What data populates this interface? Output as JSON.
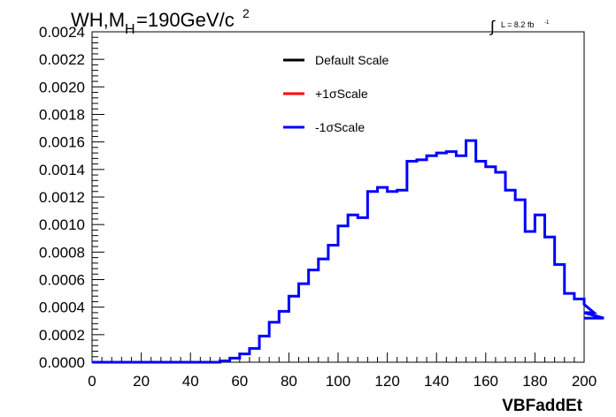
{
  "chart_data": {
    "type": "line",
    "title_main": "WH,M",
    "title_sub": "H",
    "title_rest": "=190GeV/c",
    "title_sup": "2",
    "lumi_label": "L = 8.2 fb",
    "lumi_sup": "-1",
    "xlabel": "VBFaddEt",
    "xlim": [
      0,
      200
    ],
    "ylim": [
      0,
      0.0024
    ],
    "x_ticks": [
      "0",
      "20",
      "40",
      "60",
      "80",
      "100",
      "120",
      "140",
      "160",
      "180",
      "200"
    ],
    "y_ticks": [
      "0.0000",
      "0.0002",
      "0.0004",
      "0.0006",
      "0.0008",
      "0.0010",
      "0.0012",
      "0.0014",
      "0.0016",
      "0.0018",
      "0.0020",
      "0.0022",
      "0.0024"
    ],
    "bin_width": 4,
    "legend": [
      {
        "name": "Default Scale",
        "color": "#000000"
      },
      {
        "name": "+1σScale",
        "color": "#ff0000"
      },
      {
        "name": "-1σScale",
        "color": "#0000ff"
      }
    ],
    "series": [
      {
        "name": "-1σScale",
        "color": "#0000ff",
        "bin_edges_start": 0,
        "values": [
          0,
          0,
          0,
          0,
          0,
          0,
          0,
          0,
          0,
          0,
          0,
          0,
          0,
          1e-05,
          3e-05,
          6e-05,
          0.0001,
          0.00019,
          0.00029,
          0.00037,
          0.00048,
          0.00057,
          0.00067,
          0.00075,
          0.00085,
          0.00099,
          0.00107,
          0.00105,
          0.00124,
          0.00127,
          0.00124,
          0.00125,
          0.00146,
          0.00147,
          0.0015,
          0.00152,
          0.00153,
          0.0015,
          0.00161,
          0.00146,
          0.00142,
          0.00138,
          0.00125,
          0.00118,
          0.00095,
          0.00107,
          0.00091,
          0.00071,
          0.0005,
          0.00046,
          0.00042,
          0.00036,
          0.00032
        ]
      }
    ]
  }
}
